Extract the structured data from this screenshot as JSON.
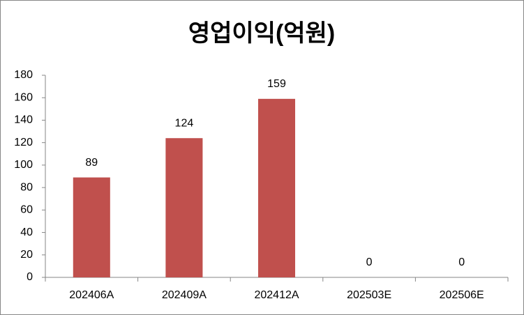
{
  "chart_data": {
    "type": "bar",
    "title": "영업이익(억원)",
    "categories": [
      "202406A",
      "202409A",
      "202412A",
      "202503E",
      "202506E"
    ],
    "values": [
      89,
      124,
      159,
      0,
      0
    ],
    "color": "#c0504d",
    "ylim": [
      0,
      180
    ],
    "yticks": [
      0,
      20,
      40,
      60,
      80,
      100,
      120,
      140,
      160,
      180
    ],
    "grid": false,
    "data_labels": true
  }
}
